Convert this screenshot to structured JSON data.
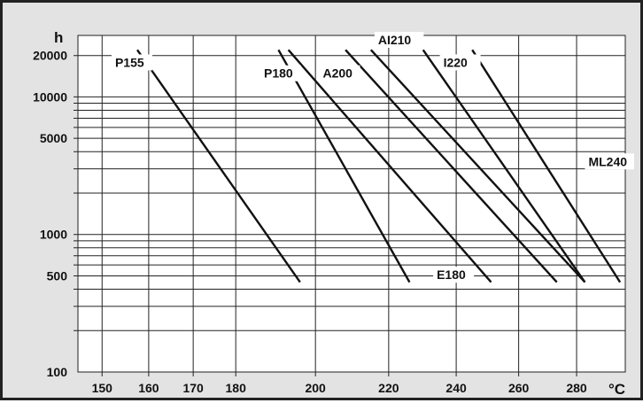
{
  "chart_data": {
    "type": "line",
    "title": "",
    "xlabel": "°C",
    "ylabel": "h",
    "yscale": "log",
    "xscale": "reciprocal",
    "grid": true,
    "legend": "none (labels placed next to lines)",
    "x_ticks": [
      {
        "value": 150,
        "label": "150"
      },
      {
        "value": 160,
        "label": "160"
      },
      {
        "value": 170,
        "label": "170"
      },
      {
        "value": 180,
        "label": "180"
      },
      {
        "value": 200,
        "label": "200"
      },
      {
        "value": 220,
        "label": "220"
      },
      {
        "value": 240,
        "label": "240"
      },
      {
        "value": 260,
        "label": "260"
      },
      {
        "value": 280,
        "label": "280"
      }
    ],
    "y_ticks": [
      {
        "value": 100,
        "label": "100"
      },
      {
        "value": 500,
        "label": "500"
      },
      {
        "value": 1000,
        "label": "1000"
      },
      {
        "value": 5000,
        "label": "5000"
      },
      {
        "value": 10000,
        "label": "10000"
      },
      {
        "value": 20000,
        "label": "20000"
      }
    ],
    "y_grid_values": [
      200,
      300,
      400,
      500,
      600,
      700,
      800,
      900,
      1000,
      2000,
      3000,
      4000,
      5000,
      6000,
      7000,
      8000,
      9000,
      10000,
      20000
    ],
    "ylim": [
      100,
      28000
    ],
    "xlim": [
      145,
      298
    ],
    "series": [
      {
        "name": "P155",
        "x": [
          157.5,
          196
        ],
        "y": [
          22000,
          450
        ]
      },
      {
        "name": "P180",
        "x": [
          190.5,
          226
        ],
        "y": [
          22000,
          450
        ]
      },
      {
        "name": "E180",
        "x": [
          193,
          251
        ],
        "y": [
          22000,
          450
        ]
      },
      {
        "name": "A200",
        "x": [
          208,
          273
        ],
        "y": [
          22000,
          450
        ]
      },
      {
        "name": "AI210",
        "x": [
          215,
          283
        ],
        "y": [
          22000,
          450
        ]
      },
      {
        "name": "I220",
        "x": [
          230,
          283
        ],
        "y": [
          22000,
          450
        ]
      },
      {
        "name": "ML240",
        "x": [
          245,
          296
        ],
        "y": [
          22000,
          450
        ]
      }
    ],
    "annotations": [
      {
        "text": "P155",
        "x": 152,
        "y": 16800
      },
      {
        "text": "P180",
        "x": 186,
        "y": 14000
      },
      {
        "text": "A200",
        "x": 201,
        "y": 14000
      },
      {
        "text": "AI210",
        "x": 216,
        "y": 24500
      },
      {
        "text": "I220",
        "x": 235,
        "y": 16800
      },
      {
        "text": "ML240",
        "x": 283,
        "y": 3200
      },
      {
        "text": "E180",
        "x": 233,
        "y": 480
      }
    ]
  }
}
